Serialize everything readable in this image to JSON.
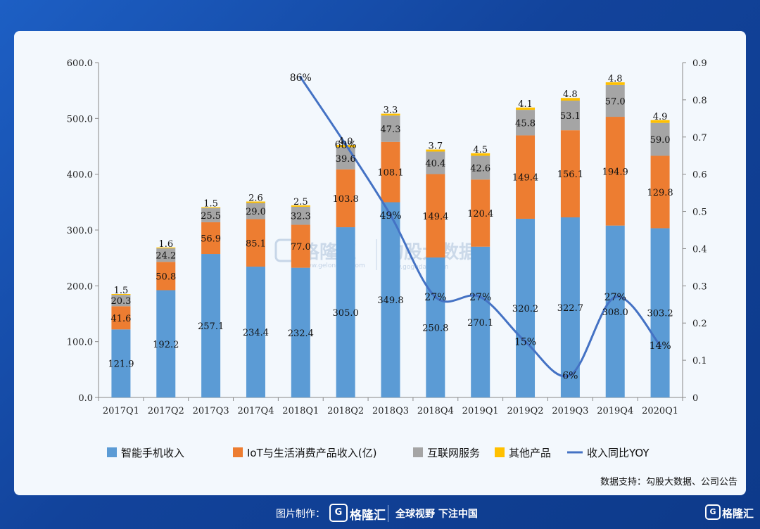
{
  "chart_data": {
    "type": "bar",
    "stacked": true,
    "categories": [
      "2017Q1",
      "2017Q2",
      "2017Q3",
      "2017Q4",
      "2018Q1",
      "2018Q2",
      "2018Q3",
      "2018Q4",
      "2019Q1",
      "2019Q2",
      "2019Q3",
      "2019Q4",
      "2020Q1"
    ],
    "series": [
      {
        "name": "智能手机收入",
        "color": "#5b9bd5",
        "values": [
          121.9,
          192.2,
          257.1,
          234.4,
          232.4,
          305.0,
          349.8,
          250.8,
          270.1,
          320.2,
          322.7,
          308.0,
          303.2
        ]
      },
      {
        "name": "IoT与生活消费产品收入(亿)",
        "color": "#ed7d31",
        "values": [
          41.6,
          50.8,
          56.9,
          85.1,
          77.0,
          103.8,
          108.1,
          149.4,
          120.4,
          149.4,
          156.1,
          194.9,
          129.8
        ]
      },
      {
        "name": "互联网服务",
        "color": "#a5a5a5",
        "values": [
          20.3,
          24.2,
          25.5,
          29.0,
          32.3,
          39.6,
          47.3,
          40.4,
          42.6,
          45.8,
          53.1,
          57.0,
          59.0
        ]
      },
      {
        "name": "其他产品",
        "color": "#ffc000",
        "values": [
          1.5,
          1.6,
          1.5,
          2.6,
          2.5,
          4.0,
          3.3,
          3.7,
          4.5,
          4.1,
          4.8,
          4.8,
          4.9
        ]
      }
    ],
    "line_series": {
      "name": "收入同比YOY",
      "color": "#4472c4",
      "start_index": 4,
      "values": [
        0.86,
        0.68,
        0.49,
        0.27,
        0.27,
        0.15,
        0.06,
        0.27,
        0.14
      ],
      "labels": [
        "86%",
        "68%",
        "49%",
        "27%",
        "27%",
        "15%",
        "6%",
        "27%",
        "14%"
      ]
    },
    "y_left": {
      "min": 0,
      "max": 600,
      "ticks": [
        "0.0",
        "100.0",
        "200.0",
        "300.0",
        "400.0",
        "500.0",
        "600.0"
      ]
    },
    "y_right": {
      "min": 0,
      "max": 0.9,
      "ticks": [
        "0",
        "0.1",
        "0.2",
        "0.3",
        "0.4",
        "0.5",
        "0.6",
        "0.7",
        "0.8",
        "0.9"
      ]
    },
    "grid": false,
    "legend_position": "bottom"
  },
  "source_note": "数据支持：勾股大数据、公司公告",
  "watermark": {
    "brand": "格隆汇",
    "brand_url": "www.gelonghui.com",
    "data_brand": "勾股大数据",
    "data_url": "www.gogudata.com"
  },
  "footer": {
    "made_by": "图片制作：",
    "brand": "格隆汇",
    "slogan": "全球视野 下注中国",
    "corner_brand": "格隆汇"
  }
}
